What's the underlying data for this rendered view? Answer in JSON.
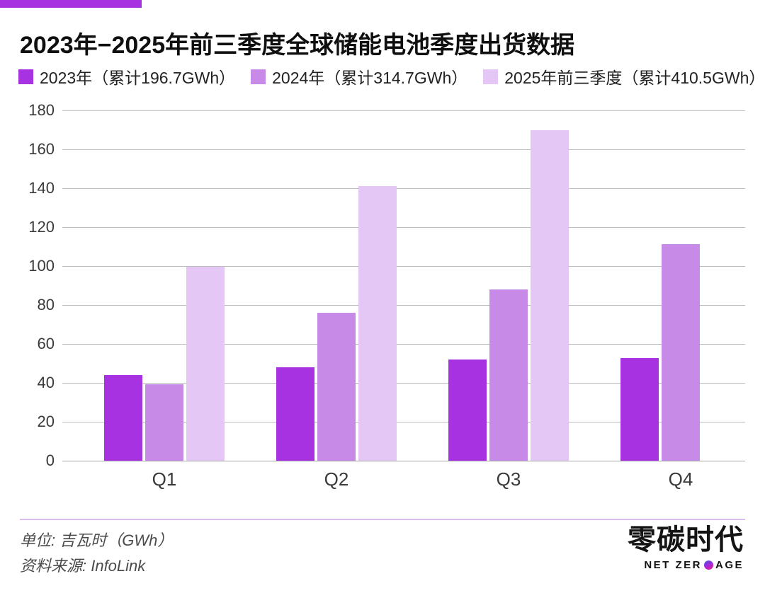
{
  "accent_color": "#a632e2",
  "title": "2023年−2025年前三季度全球储能电池季度出货数据",
  "legend": [
    {
      "label": "2023年（累计196.7GWh）",
      "color": "#a632e2"
    },
    {
      "label": "2024年（累计314.7GWh）",
      "color": "#c78ae7"
    },
    {
      "label": "2025年前三季度（累计410.5GWh）",
      "color": "#e5c7f5"
    }
  ],
  "chart_data": {
    "type": "bar",
    "categories": [
      "Q1",
      "Q2",
      "Q3",
      "Q4"
    ],
    "series": [
      {
        "name": "2023年",
        "cumulative_label": "累计196.7GWh",
        "color": "#a632e2",
        "values": [
          44,
          48,
          52,
          52.7
        ]
      },
      {
        "name": "2024年",
        "cumulative_label": "累计314.7GWh",
        "color": "#c78ae7",
        "values": [
          39.4,
          76,
          88,
          111.3
        ]
      },
      {
        "name": "2025年前三季度",
        "cumulative_label": "累计410.5GWh",
        "color": "#e5c7f5",
        "values": [
          99.5,
          141,
          170,
          null
        ]
      }
    ],
    "ylim": [
      0,
      180
    ],
    "yticks": [
      180,
      160,
      140,
      120,
      100,
      80,
      60,
      40,
      20,
      0
    ],
    "grid": true,
    "legend_position": "top",
    "unit": "GWh"
  },
  "footer": {
    "unit_note": "单位: 吉瓦时（GWh）",
    "source_note": "资料来源: InfoLink",
    "logo_cn": "零碳时代",
    "logo_en_left": "NET ZER",
    "logo_en_right": "AGE"
  }
}
